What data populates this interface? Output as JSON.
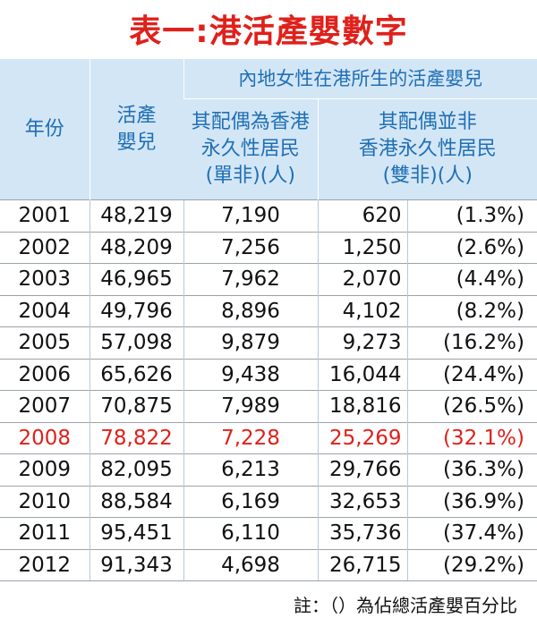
{
  "title": "表一:港活產嬰數字",
  "table": {
    "header": {
      "year": "年份",
      "live_births": [
        "活產",
        "嬰兒"
      ],
      "group": "內地女性在港所生的活產嬰兒",
      "single": [
        "其配偶為香港",
        "永久性居民",
        "(單非)(人)"
      ],
      "double": [
        "其配偶並非",
        "香港永久性居民",
        "(雙非)(人)"
      ]
    },
    "rows": [
      [
        "2001",
        "48,219",
        "7,190",
        "620",
        "(1.3%)"
      ],
      [
        "2002",
        "48,209",
        "7,256",
        "1,250",
        "(2.6%)"
      ],
      [
        "2003",
        "46,965",
        "7,962",
        "2,070",
        "(4.4%)"
      ],
      [
        "2004",
        "49,796",
        "8,896",
        "4,102",
        "(8.2%)"
      ],
      [
        "2005",
        "57,098",
        "9,879",
        "9,273",
        "(16.2%)"
      ],
      [
        "2006",
        "65,626",
        "9,438",
        "16,044",
        "(24.4%)"
      ],
      [
        "2007",
        "70,875",
        "7,989",
        "18,816",
        "(26.5%)"
      ],
      [
        "2008",
        "78,822",
        "7,228",
        "25,269",
        "(32.1%)"
      ],
      [
        "2009",
        "82,095",
        "6,213",
        "29,766",
        "(36.3%)"
      ],
      [
        "2010",
        "88,584",
        "6,169",
        "32,653",
        "(36.9%)"
      ],
      [
        "2011",
        "95,451",
        "6,110",
        "35,736",
        "(37.4%)"
      ],
      [
        "2012",
        "91,343",
        "4,698",
        "26,715",
        "(29.2%)"
      ]
    ]
  },
  "note": "註：（）為佔總活產嬰百分比"
}
